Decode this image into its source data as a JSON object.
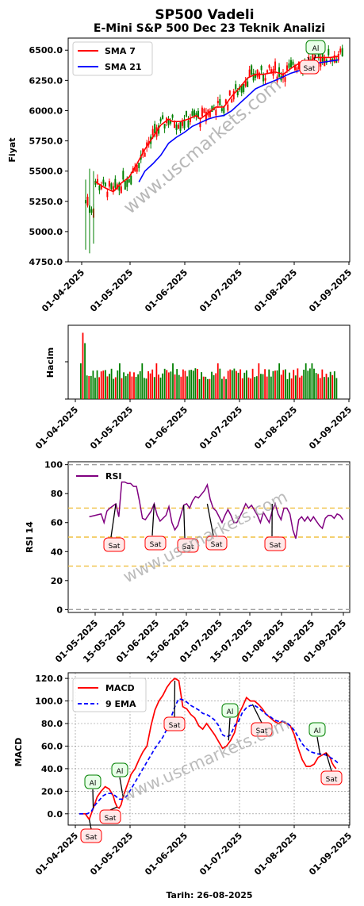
{
  "title": "SP500 Vadeli",
  "subtitle": "E-Mini S&P 500 Dec 23 Teknik Analizi",
  "watermark": "www.uscmarkets.com",
  "footer_date": "Tarih: 26-08-2025",
  "colors": {
    "up": "#008000",
    "down": "#ff0000",
    "sma7": "#ff0000",
    "sma21": "#0000ff",
    "rsi": "#800080",
    "macd": "#ff0000",
    "ema9": "#0000ff"
  },
  "chart_data": [
    {
      "type": "candlestick",
      "ylabel": "Fiyat",
      "ylim": [
        4750,
        6600
      ],
      "yticks": [
        "4750.0",
        "5000.0",
        "5250.0",
        "5500.0",
        "5750.0",
        "6000.0",
        "6250.0",
        "6500.0"
      ],
      "xticks": [
        "01-04-2025",
        "01-05-2025",
        "01-06-2025",
        "01-07-2025",
        "01-08-2025",
        "01-09-2025"
      ],
      "legend": [
        "SMA 7",
        "SMA 21"
      ],
      "grid": false,
      "sma7_points": [
        [
          5,
          5410
        ],
        [
          10,
          5360
        ],
        [
          14,
          5330
        ],
        [
          18,
          5400
        ],
        [
          22,
          5450
        ],
        [
          26,
          5560
        ],
        [
          30,
          5680
        ],
        [
          34,
          5780
        ],
        [
          38,
          5880
        ],
        [
          42,
          5930
        ],
        [
          44,
          5910
        ],
        [
          48,
          5910
        ],
        [
          52,
          5930
        ],
        [
          56,
          5960
        ],
        [
          58,
          5930
        ],
        [
          62,
          5980
        ],
        [
          66,
          6030
        ],
        [
          70,
          6030
        ],
        [
          74,
          6120
        ],
        [
          78,
          6190
        ],
        [
          82,
          6270
        ],
        [
          86,
          6300
        ],
        [
          90,
          6300
        ],
        [
          96,
          6320
        ],
        [
          100,
          6300
        ],
        [
          104,
          6350
        ],
        [
          108,
          6390
        ],
        [
          112,
          6380
        ],
        [
          116,
          6440
        ],
        [
          120,
          6440
        ],
        [
          124,
          6440
        ],
        [
          128,
          6450
        ]
      ],
      "sma21_points": [
        [
          27,
          5410
        ],
        [
          30,
          5500
        ],
        [
          34,
          5560
        ],
        [
          38,
          5630
        ],
        [
          42,
          5730
        ],
        [
          46,
          5780
        ],
        [
          50,
          5820
        ],
        [
          54,
          5870
        ],
        [
          58,
          5900
        ],
        [
          62,
          5930
        ],
        [
          66,
          5950
        ],
        [
          70,
          5960
        ],
        [
          74,
          6000
        ],
        [
          78,
          6060
        ],
        [
          82,
          6120
        ],
        [
          86,
          6180
        ],
        [
          90,
          6210
        ],
        [
          96,
          6250
        ],
        [
          100,
          6280
        ],
        [
          104,
          6310
        ],
        [
          108,
          6330
        ],
        [
          112,
          6360
        ],
        [
          116,
          6390
        ],
        [
          120,
          6400
        ],
        [
          124,
          6410
        ],
        [
          128,
          6420
        ]
      ],
      "signals": [
        {
          "label": "Al",
          "kind": "buy",
          "x": 116,
          "y": 6450
        },
        {
          "label": "Sat",
          "kind": "sell",
          "x": 113,
          "y": 6370
        }
      ]
    },
    {
      "type": "bar",
      "ylabel": "Hacim",
      "xticks": [
        "01-04-2025",
        "01-05-2025",
        "01-06-2025",
        "01-07-2025",
        "01-08-2025",
        "01-09-2025"
      ],
      "grid": false
    },
    {
      "type": "line",
      "ylabel": "RSI 14",
      "ylim": [
        -2,
        102
      ],
      "yticks": [
        "0",
        "20",
        "40",
        "60",
        "80",
        "100"
      ],
      "xticks": [
        "01-05-2025",
        "15-05-2025",
        "01-06-2025",
        "15-06-2025",
        "01-07-2025",
        "15-07-2025",
        "01-08-2025",
        "15-08-2025",
        "01-09-2025"
      ],
      "legend": [
        "RSI"
      ],
      "reference_lines": [
        0,
        30,
        50,
        70,
        100
      ],
      "points": [
        [
          5,
          64
        ],
        [
          7,
          65
        ],
        [
          9,
          66
        ],
        [
          10,
          60
        ],
        [
          11,
          68
        ],
        [
          12,
          70
        ],
        [
          14,
          73
        ],
        [
          15,
          64
        ],
        [
          16,
          88
        ],
        [
          17,
          88
        ],
        [
          18,
          87
        ],
        [
          19,
          87
        ],
        [
          20,
          85
        ],
        [
          21,
          85
        ],
        [
          22,
          75
        ],
        [
          23,
          63
        ],
        [
          24,
          62
        ],
        [
          26,
          68
        ],
        [
          27,
          73
        ],
        [
          28,
          65
        ],
        [
          29,
          61
        ],
        [
          31,
          65
        ],
        [
          32,
          71
        ],
        [
          33,
          60
        ],
        [
          34,
          55
        ],
        [
          35,
          58
        ],
        [
          36,
          65
        ],
        [
          37,
          72
        ],
        [
          38,
          73
        ],
        [
          39,
          70
        ],
        [
          40,
          75
        ],
        [
          41,
          78
        ],
        [
          42,
          77
        ],
        [
          44,
          82
        ],
        [
          45,
          86
        ],
        [
          46,
          76
        ],
        [
          47,
          70
        ],
        [
          48,
          68
        ],
        [
          50,
          60
        ],
        [
          51,
          65
        ],
        [
          52,
          69
        ],
        [
          53,
          65
        ],
        [
          54,
          60
        ],
        [
          55,
          60
        ],
        [
          56,
          64
        ],
        [
          57,
          68
        ],
        [
          58,
          73
        ],
        [
          59,
          70
        ],
        [
          60,
          72
        ],
        [
          62,
          65
        ],
        [
          63,
          60
        ],
        [
          64,
          67
        ],
        [
          66,
          60
        ],
        [
          67,
          68
        ],
        [
          68,
          73
        ],
        [
          69,
          66
        ],
        [
          70,
          62
        ],
        [
          71,
          70
        ],
        [
          72,
          70
        ],
        [
          73,
          66
        ],
        [
          74,
          55
        ],
        [
          75,
          49
        ],
        [
          76,
          62
        ],
        [
          77,
          64
        ],
        [
          78,
          61
        ],
        [
          79,
          64
        ],
        [
          80,
          61
        ],
        [
          81,
          64
        ],
        [
          82,
          61
        ],
        [
          83,
          58
        ],
        [
          84,
          56
        ],
        [
          85,
          63
        ],
        [
          86,
          65
        ],
        [
          87,
          65
        ],
        [
          88,
          63
        ],
        [
          89,
          66
        ],
        [
          90,
          65
        ],
        [
          91,
          62
        ]
      ],
      "signals": [
        {
          "label": "Sat",
          "kind": "sell",
          "x": 14,
          "y": 73
        },
        {
          "label": "Sat",
          "kind": "sell",
          "x": 27,
          "y": 73
        },
        {
          "label": "Sat",
          "kind": "sell",
          "x": 37,
          "y": 72
        },
        {
          "label": "Sat",
          "kind": "sell",
          "x": 45,
          "y": 73
        },
        {
          "label": "Sat",
          "kind": "sell",
          "x": 67,
          "y": 73
        }
      ]
    },
    {
      "type": "line",
      "ylabel": "MACD",
      "xlabel": "Tarih: 26-08-2025",
      "ylim": [
        -10,
        125
      ],
      "yticks": [
        "0.0",
        "20.0",
        "40.0",
        "60.0",
        "80.0",
        "100.0",
        "120.0"
      ],
      "xticks": [
        "01-04-2025",
        "01-05-2025",
        "01-06-2025",
        "01-07-2025",
        "01-08-2025",
        "01-09-2025"
      ],
      "legend": [
        "MACD",
        "9 EMA"
      ],
      "grid": true,
      "macd_points": [
        [
          0,
          0
        ],
        [
          3,
          0
        ],
        [
          5,
          -5
        ],
        [
          7,
          5
        ],
        [
          9,
          15
        ],
        [
          11,
          20
        ],
        [
          13,
          24
        ],
        [
          15,
          22
        ],
        [
          17,
          16
        ],
        [
          18,
          10
        ],
        [
          19,
          6
        ],
        [
          20,
          5
        ],
        [
          21,
          8
        ],
        [
          22,
          15
        ],
        [
          24,
          25
        ],
        [
          26,
          35
        ],
        [
          28,
          40
        ],
        [
          30,
          48
        ],
        [
          32,
          55
        ],
        [
          34,
          60
        ],
        [
          36,
          78
        ],
        [
          38,
          92
        ],
        [
          40,
          100
        ],
        [
          42,
          105
        ],
        [
          44,
          112
        ],
        [
          46,
          117
        ],
        [
          48,
          120
        ],
        [
          50,
          118
        ],
        [
          52,
          95
        ],
        [
          54,
          93
        ],
        [
          56,
          88
        ],
        [
          58,
          85
        ],
        [
          60,
          78
        ],
        [
          62,
          75
        ],
        [
          64,
          80
        ],
        [
          66,
          75
        ],
        [
          68,
          70
        ],
        [
          70,
          64
        ],
        [
          72,
          58
        ],
        [
          74,
          60
        ],
        [
          76,
          65
        ],
        [
          78,
          72
        ],
        [
          80,
          88
        ],
        [
          82,
          95
        ],
        [
          84,
          103
        ],
        [
          86,
          100
        ],
        [
          88,
          100
        ],
        [
          90,
          97
        ],
        [
          92,
          93
        ],
        [
          94,
          88
        ],
        [
          96,
          85
        ],
        [
          98,
          82
        ],
        [
          100,
          80
        ],
        [
          102,
          82
        ],
        [
          104,
          80
        ],
        [
          106,
          78
        ],
        [
          108,
          70
        ],
        [
          110,
          58
        ],
        [
          112,
          48
        ],
        [
          114,
          42
        ],
        [
          116,
          42
        ],
        [
          118,
          44
        ],
        [
          120,
          50
        ],
        [
          122,
          52
        ],
        [
          124,
          54
        ],
        [
          126,
          50
        ],
        [
          127,
          45
        ],
        [
          128,
          42
        ],
        [
          129,
          40
        ]
      ],
      "ema9_points": [
        [
          0,
          0
        ],
        [
          4,
          0
        ],
        [
          6,
          2
        ],
        [
          8,
          8
        ],
        [
          10,
          12
        ],
        [
          12,
          16
        ],
        [
          14,
          18
        ],
        [
          16,
          18
        ],
        [
          18,
          16
        ],
        [
          20,
          13
        ],
        [
          22,
          13
        ],
        [
          24,
          16
        ],
        [
          26,
          22
        ],
        [
          28,
          28
        ],
        [
          30,
          34
        ],
        [
          32,
          40
        ],
        [
          34,
          46
        ],
        [
          36,
          52
        ],
        [
          38,
          58
        ],
        [
          40,
          63
        ],
        [
          42,
          68
        ],
        [
          44,
          75
        ],
        [
          46,
          85
        ],
        [
          48,
          95
        ],
        [
          50,
          102
        ],
        [
          52,
          101
        ],
        [
          54,
          99
        ],
        [
          56,
          96
        ],
        [
          58,
          94
        ],
        [
          60,
          92
        ],
        [
          62,
          89
        ],
        [
          64,
          88
        ],
        [
          66,
          86
        ],
        [
          68,
          83
        ],
        [
          70,
          78
        ],
        [
          72,
          70
        ],
        [
          74,
          68
        ],
        [
          76,
          70
        ],
        [
          78,
          78
        ],
        [
          80,
          82
        ],
        [
          82,
          90
        ],
        [
          84,
          94
        ],
        [
          86,
          96
        ],
        [
          88,
          96
        ],
        [
          90,
          94
        ],
        [
          92,
          91
        ],
        [
          94,
          88
        ],
        [
          96,
          86
        ],
        [
          98,
          83
        ],
        [
          100,
          82
        ],
        [
          102,
          82
        ],
        [
          104,
          81
        ],
        [
          106,
          78
        ],
        [
          108,
          74
        ],
        [
          110,
          68
        ],
        [
          112,
          62
        ],
        [
          114,
          58
        ],
        [
          116,
          55
        ],
        [
          118,
          54
        ],
        [
          120,
          53
        ],
        [
          122,
          53
        ],
        [
          124,
          52
        ],
        [
          126,
          50
        ],
        [
          128,
          48
        ],
        [
          130,
          45
        ]
      ],
      "signals": [
        {
          "label": "Al",
          "kind": "buy",
          "x": 7,
          "y": 5
        },
        {
          "label": "Sat",
          "kind": "sell",
          "x": 5,
          "y": -5
        },
        {
          "label": "Al",
          "kind": "buy",
          "x": 22,
          "y": 15
        },
        {
          "label": "Sat",
          "kind": "sell",
          "x": 19,
          "y": 6
        },
        {
          "label": "Sat",
          "kind": "sell",
          "x": 48,
          "y": 118
        },
        {
          "label": "Al",
          "kind": "buy",
          "x": 75,
          "y": 65
        },
        {
          "label": "Sat",
          "kind": "sell",
          "x": 87,
          "y": 97
        },
        {
          "label": "Al",
          "kind": "buy",
          "x": 121,
          "y": 52
        },
        {
          "label": "Sat",
          "kind": "sell",
          "x": 124,
          "y": 54
        }
      ]
    }
  ]
}
